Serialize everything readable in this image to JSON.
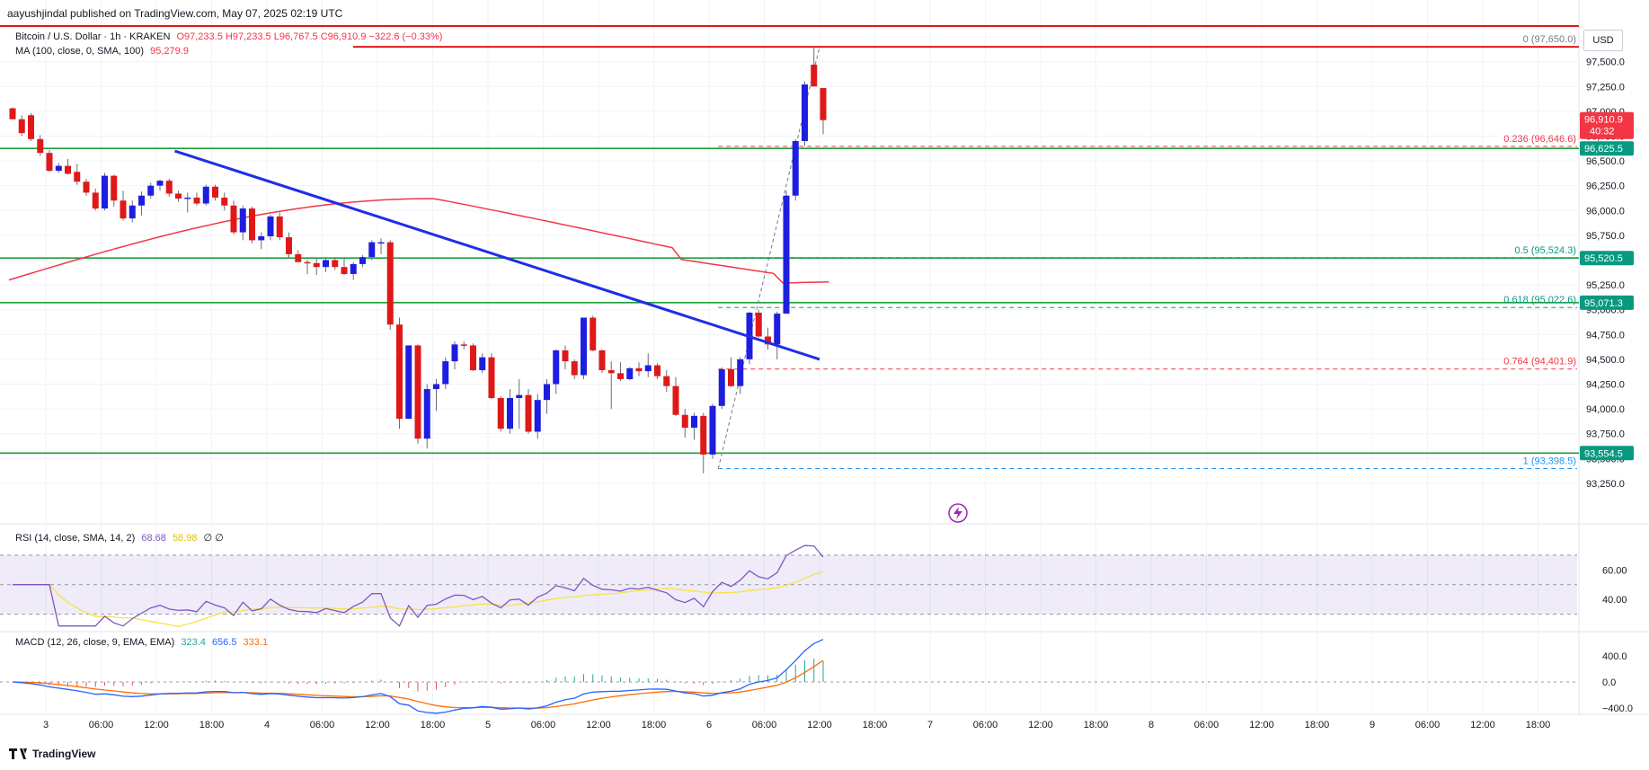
{
  "header": {
    "publisher": "aayushjindal published on TradingView.com, May 07, 2025 02:19 UTC"
  },
  "legend": {
    "symbol": "Bitcoin / U.S. Dollar · 1h · KRAKEN",
    "ohlc": "O97,233.5 H97,233.5 L96,767.5 C96,910.9 −322.6 (−0.33%)",
    "ma_label": "MA (100, close, 0, SMA, 100)",
    "ma_value": "95,279.9",
    "rsi_label": "RSI (14, close, SMA, 14, 2)",
    "rsi_value": "68.68",
    "rsi_sma": "58.98",
    "rsi_extra": "∅ ∅",
    "macd_label": "MACD (12, 26, close, 9, EMA, EMA)",
    "macd_hist": "323.4",
    "macd_line": "656.5",
    "macd_signal": "333.1"
  },
  "currency": "USD",
  "footer": {
    "brand": "TradingView"
  },
  "colors": {
    "up": "#1e1ee0",
    "down": "#e01818",
    "ma": "#f23645",
    "support": "#089981",
    "trend": "#1f2ee6",
    "rsi": "#7e57c2",
    "rsi_sma": "#f7e24a",
    "macd": "#2962ff",
    "signal": "#ff6d00",
    "price_tag": "#f23645"
  },
  "chart_data": {
    "type": "candlestick",
    "title": "Bitcoin / U.S. Dollar, 1h, KRAKEN",
    "ylim": [
      93050,
      97850
    ],
    "y_ticks": [
      93250,
      93500,
      93750,
      94000,
      94250,
      94500,
      94750,
      95000,
      95250,
      95500,
      95750,
      96000,
      96250,
      96500,
      96750,
      97000,
      97250,
      97500
    ],
    "y_tick_labels": [
      "93,250.0",
      "93,500.0",
      "93,750.0",
      "94,000.0",
      "94,250.0",
      "94,500.0",
      "94,750.0",
      "95,000.0",
      "95,250.0",
      "95,500.0",
      "95,750.0",
      "96,000.0",
      "96,250.0",
      "96,500.0",
      "96,750.0",
      "97,000.0",
      "97,250.0",
      "97,500.0"
    ],
    "x_ticks": [
      {
        "i": 4,
        "label": "3"
      },
      {
        "i": 10,
        "label": "06:00"
      },
      {
        "i": 16,
        "label": "12:00"
      },
      {
        "i": 22,
        "label": "18:00"
      },
      {
        "i": 28,
        "label": "4"
      },
      {
        "i": 34,
        "label": "06:00"
      },
      {
        "i": 40,
        "label": "12:00"
      },
      {
        "i": 46,
        "label": "18:00"
      },
      {
        "i": 52,
        "label": "5"
      },
      {
        "i": 58,
        "label": "06:00"
      },
      {
        "i": 64,
        "label": "12:00"
      },
      {
        "i": 70,
        "label": "18:00"
      },
      {
        "i": 76,
        "label": "6"
      },
      {
        "i": 82,
        "label": "06:00"
      },
      {
        "i": 88,
        "label": "12:00"
      },
      {
        "i": 94,
        "label": "18:00"
      },
      {
        "i": 100,
        "label": "7"
      },
      {
        "i": 106,
        "label": "06:00"
      },
      {
        "i": 112,
        "label": "12:00"
      },
      {
        "i": 118,
        "label": "18:00"
      },
      {
        "i": 124,
        "label": "8"
      },
      {
        "i": 130,
        "label": "06:00"
      },
      {
        "i": 136,
        "label": "12:00"
      },
      {
        "i": 142,
        "label": "18:00"
      },
      {
        "i": 148,
        "label": "9"
      },
      {
        "i": 154,
        "label": "06:00"
      },
      {
        "i": 160,
        "label": "12:00"
      },
      {
        "i": 166,
        "label": "18:00"
      }
    ],
    "candles": [
      [
        97030,
        97040,
        96920,
        96920
      ],
      [
        96920,
        96960,
        96750,
        96780
      ],
      [
        96960,
        96980,
        96700,
        96720
      ],
      [
        96720,
        96760,
        96550,
        96580
      ],
      [
        96580,
        96610,
        96390,
        96400
      ],
      [
        96400,
        96480,
        96380,
        96450
      ],
      [
        96450,
        96520,
        96360,
        96370
      ],
      [
        96390,
        96470,
        96260,
        96290
      ],
      [
        96290,
        96320,
        96150,
        96180
      ],
      [
        96180,
        96220,
        96000,
        96020
      ],
      [
        96020,
        96380,
        96000,
        96350
      ],
      [
        96350,
        96360,
        96040,
        96100
      ],
      [
        96100,
        96200,
        95900,
        95920
      ],
      [
        95920,
        96100,
        95880,
        96050
      ],
      [
        96050,
        96190,
        95950,
        96150
      ],
      [
        96150,
        96280,
        96120,
        96250
      ],
      [
        96250,
        96310,
        96200,
        96300
      ],
      [
        96300,
        96320,
        96140,
        96170
      ],
      [
        96170,
        96200,
        96090,
        96120
      ],
      [
        96120,
        96180,
        95980,
        96130
      ],
      [
        96130,
        96180,
        96050,
        96070
      ],
      [
        96070,
        96260,
        96050,
        96240
      ],
      [
        96240,
        96260,
        96100,
        96130
      ],
      [
        96130,
        96180,
        96000,
        96050
      ],
      [
        96050,
        96100,
        95760,
        95780
      ],
      [
        95780,
        96050,
        95700,
        96020
      ],
      [
        96020,
        96040,
        95670,
        95700
      ],
      [
        95700,
        95780,
        95610,
        95740
      ],
      [
        95740,
        95960,
        95700,
        95940
      ],
      [
        95940,
        95980,
        95700,
        95730
      ],
      [
        95730,
        95780,
        95520,
        95560
      ],
      [
        95560,
        95600,
        95480,
        95480
      ],
      [
        95480,
        95500,
        95360,
        95470
      ],
      [
        95470,
        95520,
        95350,
        95430
      ],
      [
        95430,
        95520,
        95380,
        95500
      ],
      [
        95500,
        95530,
        95400,
        95430
      ],
      [
        95430,
        95520,
        95350,
        95360
      ],
      [
        95360,
        95480,
        95300,
        95460
      ],
      [
        95460,
        95550,
        95430,
        95530
      ],
      [
        95530,
        95700,
        95500,
        95680
      ],
      [
        95680,
        95720,
        95560,
        95680
      ],
      [
        95680,
        95700,
        94800,
        94850
      ],
      [
        94850,
        94920,
        93800,
        93900
      ],
      [
        93900,
        94640,
        93900,
        94640
      ],
      [
        94640,
        94650,
        93650,
        93700
      ],
      [
        93700,
        94250,
        93600,
        94200
      ],
      [
        94200,
        94300,
        93980,
        94250
      ],
      [
        94250,
        94520,
        94200,
        94480
      ],
      [
        94480,
        94680,
        94400,
        94650
      ],
      [
        94650,
        94680,
        94600,
        94640
      ],
      [
        94640,
        94660,
        94380,
        94390
      ],
      [
        94390,
        94560,
        94360,
        94520
      ],
      [
        94520,
        94560,
        94100,
        94110
      ],
      [
        94110,
        94130,
        93770,
        93800
      ],
      [
        93800,
        94200,
        93750,
        94110
      ],
      [
        94110,
        94300,
        93800,
        94140
      ],
      [
        94140,
        94200,
        93750,
        93770
      ],
      [
        93770,
        94150,
        93700,
        94090
      ],
      [
        94090,
        94300,
        93950,
        94250
      ],
      [
        94250,
        94600,
        94150,
        94590
      ],
      [
        94590,
        94640,
        94400,
        94480
      ],
      [
        94480,
        94500,
        94300,
        94340
      ],
      [
        94340,
        94920,
        94300,
        94920
      ],
      [
        94920,
        94940,
        94580,
        94590
      ],
      [
        94590,
        94600,
        94360,
        94390
      ],
      [
        94390,
        94480,
        94000,
        94360
      ],
      [
        94360,
        94470,
        94280,
        94300
      ],
      [
        94300,
        94420,
        94290,
        94410
      ],
      [
        94410,
        94470,
        94330,
        94380
      ],
      [
        94380,
        94560,
        94320,
        94440
      ],
      [
        94440,
        94460,
        94300,
        94330
      ],
      [
        94330,
        94390,
        94170,
        94230
      ],
      [
        94230,
        94320,
        93930,
        93940
      ],
      [
        93940,
        94000,
        93710,
        93810
      ],
      [
        93810,
        93960,
        93690,
        93930
      ],
      [
        93930,
        93960,
        93350,
        93540
      ],
      [
        93540,
        94050,
        93500,
        94030
      ],
      [
        94030,
        94420,
        94000,
        94400
      ],
      [
        94400,
        94520,
        94220,
        94230
      ],
      [
        94230,
        94520,
        94150,
        94500
      ],
      [
        94500,
        94980,
        94450,
        94970
      ],
      [
        94970,
        95000,
        94720,
        94730
      ],
      [
        94730,
        94820,
        94600,
        94650
      ],
      [
        94650,
        94980,
        94500,
        94960
      ],
      [
        94960,
        96200,
        94960,
        96150
      ],
      [
        96150,
        96720,
        96100,
        96700
      ],
      [
        96700,
        97300,
        96650,
        97270
      ],
      [
        97470,
        97650,
        97250,
        97250
      ],
      [
        97233.5,
        97233.5,
        96767.5,
        96910.9
      ]
    ],
    "moving_average": {
      "name": "MA 100",
      "start": 95300,
      "end": 95279.9,
      "peak": 96120
    },
    "trend_line": {
      "from": [
        18,
        96600
      ],
      "to": [
        88,
        94500
      ]
    },
    "support_lines": [
      96625.5,
      95520.5,
      95071.3,
      93554.5
    ],
    "support_labels": [
      "96,625.5",
      "95,520.5",
      "95,071.3",
      "93,554.5"
    ],
    "fib_levels": [
      {
        "label": "0 (97,650.0)",
        "value": 97650.0
      },
      {
        "label": "0.236 (96,646.6)",
        "value": 96646.6
      },
      {
        "label": "0.5 (95,524.3)",
        "value": 95524.3
      },
      {
        "label": "0.618 (95,022.6)",
        "value": 95022.6
      },
      {
        "label": "0.764 (94,401.9)",
        "value": 94401.9
      },
      {
        "label": "1 (93,398.5)",
        "value": 93398.5
      }
    ],
    "last_price": "96,910.9",
    "countdown": "40:32",
    "rsi": {
      "ylim": [
        20,
        90
      ],
      "ticks": [
        40,
        60
      ],
      "tick_labels": [
        "40.00",
        "60.00"
      ],
      "band": [
        30,
        70
      ],
      "mid": 50,
      "current": 68.68,
      "sma": 58.98
    },
    "macd": {
      "ylim": [
        -500,
        750
      ],
      "ticks": [
        -400,
        0,
        400
      ],
      "tick_labels": [
        "−400.0",
        "0.0",
        "400.0"
      ],
      "macd": 656.5,
      "signal": 333.1,
      "histogram": 323.4
    }
  }
}
